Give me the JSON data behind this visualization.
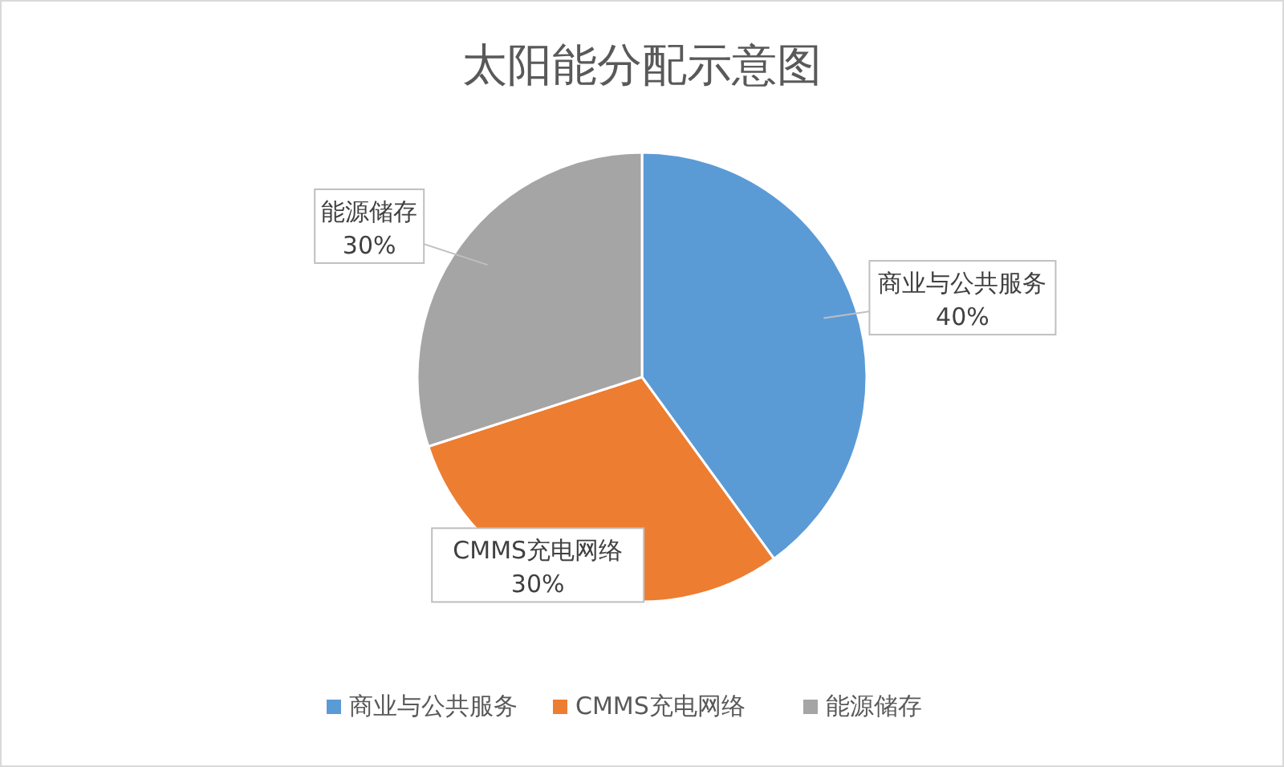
{
  "chart_data": {
    "type": "pie",
    "title": "太阳能分配示意图",
    "categories": [
      "商业与公共服务",
      "CMMS充电网络",
      "能源储存"
    ],
    "values": [
      40,
      30,
      30
    ],
    "colors": [
      "#5b9bd5",
      "#ed7d31",
      "#a5a5a5"
    ],
    "value_labels": [
      "40%",
      "30%",
      "30%"
    ],
    "legend": "bottom"
  }
}
